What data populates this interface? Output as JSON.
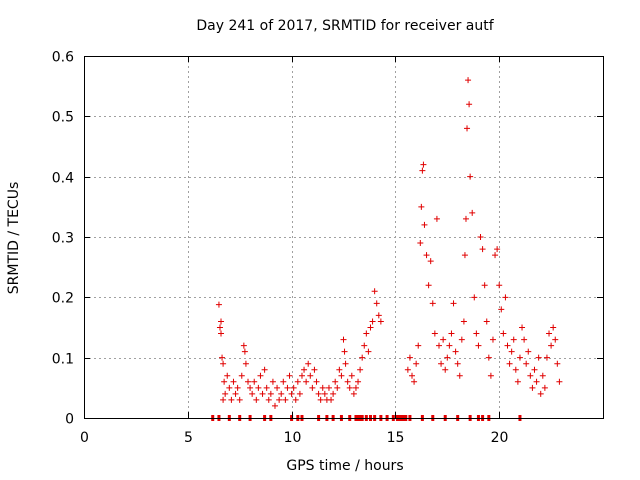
{
  "chart_data": {
    "type": "scatter",
    "title": "Day 241 of 2017, SRMTID for receiver autf",
    "xlabel": "GPS time / hours",
    "ylabel": "SRMTID / TECUs",
    "xlim": [
      0,
      25
    ],
    "ylim": [
      0,
      0.6
    ],
    "x_ticks": [
      0,
      5,
      10,
      15,
      20
    ],
    "x_tick_labels": [
      "0",
      "5",
      "10",
      "15",
      "20"
    ],
    "y_ticks": [
      0,
      0.1,
      0.2,
      0.3,
      0.4,
      0.5,
      0.6
    ],
    "y_tick_labels": [
      "0",
      "0.1",
      "0.2",
      "0.3",
      "0.4",
      "0.5",
      "0.6"
    ],
    "grid": true,
    "marker": "+",
    "marker_color": "#e00000",
    "series": [
      {
        "name": "SRMTID",
        "points": [
          [
            6.5,
            0.188
          ],
          [
            6.55,
            0.15
          ],
          [
            6.6,
            0.16
          ],
          [
            6.65,
            0.1
          ],
          [
            6.7,
            0.09
          ],
          [
            6.6,
            0.14
          ],
          [
            6.75,
            0.06
          ],
          [
            6.8,
            0.04
          ],
          [
            6.7,
            0.03
          ],
          [
            6.9,
            0.07
          ],
          [
            7.0,
            0.05
          ],
          [
            7.1,
            0.03
          ],
          [
            7.2,
            0.06
          ],
          [
            7.3,
            0.04
          ],
          [
            7.4,
            0.05
          ],
          [
            7.5,
            0.03
          ],
          [
            7.6,
            0.07
          ],
          [
            7.7,
            0.12
          ],
          [
            7.75,
            0.11
          ],
          [
            7.8,
            0.09
          ],
          [
            7.9,
            0.06
          ],
          [
            8.0,
            0.05
          ],
          [
            8.1,
            0.04
          ],
          [
            8.2,
            0.06
          ],
          [
            8.3,
            0.03
          ],
          [
            8.4,
            0.05
          ],
          [
            8.5,
            0.07
          ],
          [
            8.6,
            0.04
          ],
          [
            8.7,
            0.08
          ],
          [
            8.8,
            0.05
          ],
          [
            8.9,
            0.03
          ],
          [
            9.0,
            0.04
          ],
          [
            9.1,
            0.06
          ],
          [
            9.2,
            0.02
          ],
          [
            9.3,
            0.05
          ],
          [
            9.4,
            0.03
          ],
          [
            9.5,
            0.04
          ],
          [
            9.6,
            0.06
          ],
          [
            9.7,
            0.03
          ],
          [
            9.8,
            0.05
          ],
          [
            9.9,
            0.07
          ],
          [
            10.0,
            0.04
          ],
          [
            10.1,
            0.05
          ],
          [
            10.2,
            0.03
          ],
          [
            10.3,
            0.06
          ],
          [
            10.4,
            0.04
          ],
          [
            10.5,
            0.07
          ],
          [
            10.6,
            0.08
          ],
          [
            10.7,
            0.06
          ],
          [
            10.8,
            0.09
          ],
          [
            10.9,
            0.07
          ],
          [
            11.0,
            0.05
          ],
          [
            11.1,
            0.08
          ],
          [
            11.2,
            0.06
          ],
          [
            11.3,
            0.04
          ],
          [
            11.4,
            0.03
          ],
          [
            11.5,
            0.05
          ],
          [
            11.6,
            0.04
          ],
          [
            11.7,
            0.03
          ],
          [
            11.8,
            0.05
          ],
          [
            11.9,
            0.03
          ],
          [
            12.0,
            0.04
          ],
          [
            12.1,
            0.06
          ],
          [
            12.2,
            0.05
          ],
          [
            12.3,
            0.08
          ],
          [
            12.4,
            0.07
          ],
          [
            12.5,
            0.13
          ],
          [
            12.55,
            0.11
          ],
          [
            12.6,
            0.09
          ],
          [
            12.7,
            0.06
          ],
          [
            12.8,
            0.05
          ],
          [
            12.9,
            0.07
          ],
          [
            13.0,
            0.04
          ],
          [
            13.1,
            0.05
          ],
          [
            13.2,
            0.06
          ],
          [
            13.3,
            0.08
          ],
          [
            13.4,
            0.1
          ],
          [
            13.5,
            0.12
          ],
          [
            13.6,
            0.14
          ],
          [
            13.7,
            0.11
          ],
          [
            13.8,
            0.15
          ],
          [
            13.9,
            0.16
          ],
          [
            14.0,
            0.21
          ],
          [
            14.1,
            0.19
          ],
          [
            14.2,
            0.17
          ],
          [
            14.3,
            0.16
          ],
          [
            15.6,
            0.08
          ],
          [
            15.7,
            0.1
          ],
          [
            15.8,
            0.07
          ],
          [
            15.9,
            0.06
          ],
          [
            16.0,
            0.09
          ],
          [
            16.1,
            0.12
          ],
          [
            16.2,
            0.29
          ],
          [
            16.25,
            0.35
          ],
          [
            16.3,
            0.41
          ],
          [
            16.35,
            0.42
          ],
          [
            16.4,
            0.32
          ],
          [
            16.5,
            0.27
          ],
          [
            16.6,
            0.22
          ],
          [
            16.7,
            0.26
          ],
          [
            16.8,
            0.19
          ],
          [
            16.9,
            0.14
          ],
          [
            17.0,
            0.33
          ],
          [
            17.1,
            0.12
          ],
          [
            17.2,
            0.09
          ],
          [
            17.3,
            0.13
          ],
          [
            17.4,
            0.08
          ],
          [
            17.5,
            0.1
          ],
          [
            17.6,
            0.12
          ],
          [
            17.7,
            0.14
          ],
          [
            17.8,
            0.19
          ],
          [
            17.9,
            0.11
          ],
          [
            18.0,
            0.09
          ],
          [
            18.1,
            0.07
          ],
          [
            18.2,
            0.13
          ],
          [
            18.3,
            0.16
          ],
          [
            18.35,
            0.27
          ],
          [
            18.4,
            0.33
          ],
          [
            18.45,
            0.48
          ],
          [
            18.5,
            0.56
          ],
          [
            18.55,
            0.52
          ],
          [
            18.6,
            0.4
          ],
          [
            18.7,
            0.34
          ],
          [
            18.8,
            0.2
          ],
          [
            18.9,
            0.14
          ],
          [
            19.0,
            0.12
          ],
          [
            19.1,
            0.3
          ],
          [
            19.2,
            0.28
          ],
          [
            19.3,
            0.22
          ],
          [
            19.4,
            0.16
          ],
          [
            19.5,
            0.1
          ],
          [
            19.6,
            0.07
          ],
          [
            19.7,
            0.13
          ],
          [
            19.8,
            0.27
          ],
          [
            19.9,
            0.28
          ],
          [
            20.0,
            0.22
          ],
          [
            20.1,
            0.18
          ],
          [
            20.2,
            0.14
          ],
          [
            20.3,
            0.2
          ],
          [
            20.4,
            0.12
          ],
          [
            20.5,
            0.09
          ],
          [
            20.6,
            0.11
          ],
          [
            20.7,
            0.13
          ],
          [
            20.8,
            0.08
          ],
          [
            20.9,
            0.06
          ],
          [
            21.0,
            0.1
          ],
          [
            21.1,
            0.15
          ],
          [
            21.2,
            0.13
          ],
          [
            21.3,
            0.09
          ],
          [
            21.4,
            0.11
          ],
          [
            21.5,
            0.07
          ],
          [
            21.6,
            0.05
          ],
          [
            21.7,
            0.08
          ],
          [
            21.8,
            0.06
          ],
          [
            21.9,
            0.1
          ],
          [
            22.0,
            0.04
          ],
          [
            22.1,
            0.07
          ],
          [
            22.2,
            0.05
          ],
          [
            22.3,
            0.1
          ],
          [
            22.4,
            0.14
          ],
          [
            22.5,
            0.12
          ],
          [
            22.6,
            0.15
          ],
          [
            22.7,
            0.13
          ],
          [
            22.8,
            0.09
          ],
          [
            22.9,
            0.06
          ]
        ]
      }
    ],
    "zero_flags_x": [
      6.2,
      6.5,
      7.0,
      7.5,
      8.0,
      8.7,
      9.0,
      10.0,
      10.3,
      10.5,
      11.3,
      11.7,
      12.0,
      12.4,
      12.8,
      13.1,
      13.2,
      13.3,
      13.4,
      13.6,
      13.8,
      14.0,
      14.3,
      14.6,
      14.9,
      15.1,
      15.2,
      15.3,
      15.4,
      15.5,
      15.7,
      16.3,
      16.8,
      17.4,
      18.0,
      18.6,
      19.0,
      19.2,
      19.5,
      21.0
    ]
  }
}
